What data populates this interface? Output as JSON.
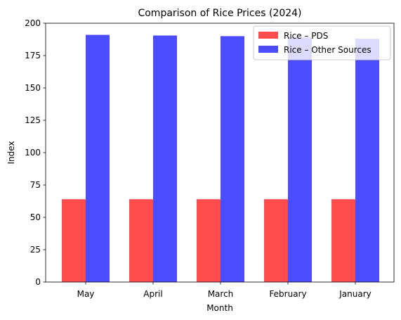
{
  "chart_data": {
    "type": "bar",
    "title": "Comparison of Rice Prices (2024)",
    "xlabel": "Month",
    "ylabel": "Index",
    "categories": [
      "May",
      "April",
      "March",
      "February",
      "January"
    ],
    "series": [
      {
        "name": "Rice – PDS",
        "values": [
          64,
          64,
          64,
          64,
          64
        ],
        "color": "#ff4c4c"
      },
      {
        "name": "Rice – Other Sources",
        "values": [
          191,
          190.5,
          190,
          189,
          188
        ],
        "color": "#4c4cff"
      }
    ],
    "ylim": [
      0,
      200
    ],
    "yticks": [
      0,
      25,
      50,
      75,
      100,
      125,
      150,
      175,
      200
    ],
    "grid": false,
    "legend_position": "top-right"
  }
}
